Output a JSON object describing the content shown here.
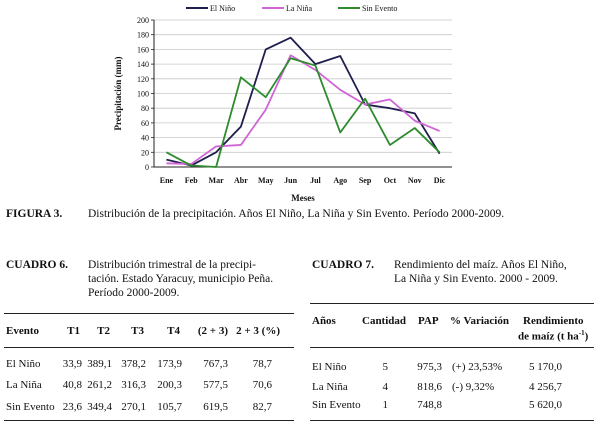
{
  "chart_data": {
    "type": "line",
    "title": "",
    "xlabel": "Meses",
    "ylabel": "Precipitación (mm)",
    "categories": [
      "Ene",
      "Feb",
      "Mar",
      "Abr",
      "May",
      "Jun",
      "Jul",
      "Ago",
      "Sep",
      "Oct",
      "Nov",
      "Dic"
    ],
    "ylim": [
      0,
      200
    ],
    "yticks": [
      0,
      20,
      40,
      60,
      80,
      100,
      120,
      140,
      160,
      180,
      200
    ],
    "legend_position": "top",
    "series": [
      {
        "name": "El Niño",
        "color": "#1f1f4f",
        "values": [
          10,
          2,
          20,
          55,
          160,
          176,
          140,
          151,
          85,
          80,
          73,
          18
        ]
      },
      {
        "name": "La Niña",
        "color": "#d066d6",
        "values": [
          5,
          4,
          28,
          30,
          78,
          152,
          132,
          105,
          85,
          92,
          63,
          49
        ]
      },
      {
        "name": "Sin Evento",
        "color": "#2e8b2e",
        "values": [
          20,
          2,
          0,
          122,
          95,
          148,
          138,
          47,
          93,
          30,
          53,
          20
        ]
      }
    ]
  },
  "figure": {
    "label": "FIGURA 3.",
    "text": "Distribución de la precipitación. Años El Niño, La Niña y Sin Evento. Período 2000-2009."
  },
  "cuadro6": {
    "label": "CUADRO 6.",
    "title_lines": [
      "Distribución trimestral de la precipi-",
      "tación. Estado Yaracuy, municipio Peña.",
      "Período 2000-2009."
    ],
    "headers": [
      "Evento",
      "T1",
      "T2",
      "T3",
      "T4",
      "(2 + 3)",
      "2 + 3 (%)"
    ],
    "rows": [
      [
        "El Niño",
        "33,9",
        "389,1",
        "378,2",
        "173,9",
        "767,3",
        "78,7"
      ],
      [
        "La Niña",
        "40,8",
        "261,2",
        "316,3",
        "200,3",
        "577,5",
        "70,6"
      ],
      [
        "Sin Evento",
        "23,6",
        "349,4",
        "270,1",
        "105,7",
        "619,5",
        "82,7"
      ]
    ]
  },
  "cuadro7": {
    "label": "CUADRO 7.",
    "title_lines": [
      "Rendimiento del maíz.  Años El Niño,",
      "La Niña y Sin Evento. 2000 - 2009."
    ],
    "headers": [
      "Años",
      "Cantidad",
      "PAP",
      "% Variación",
      "Rendimiento",
      "de maíz (t ha",
      "-1",
      ")"
    ],
    "rows": [
      [
        "El Niño",
        "5",
        "975,3",
        "(+) 23,53%",
        "5 170,0"
      ],
      [
        "La Niña",
        "4",
        "818,6",
        "(-) 9,32%",
        "4 256,7"
      ],
      [
        "Sin Evento",
        "1",
        "748,8",
        "",
        "5 620,0"
      ]
    ]
  }
}
